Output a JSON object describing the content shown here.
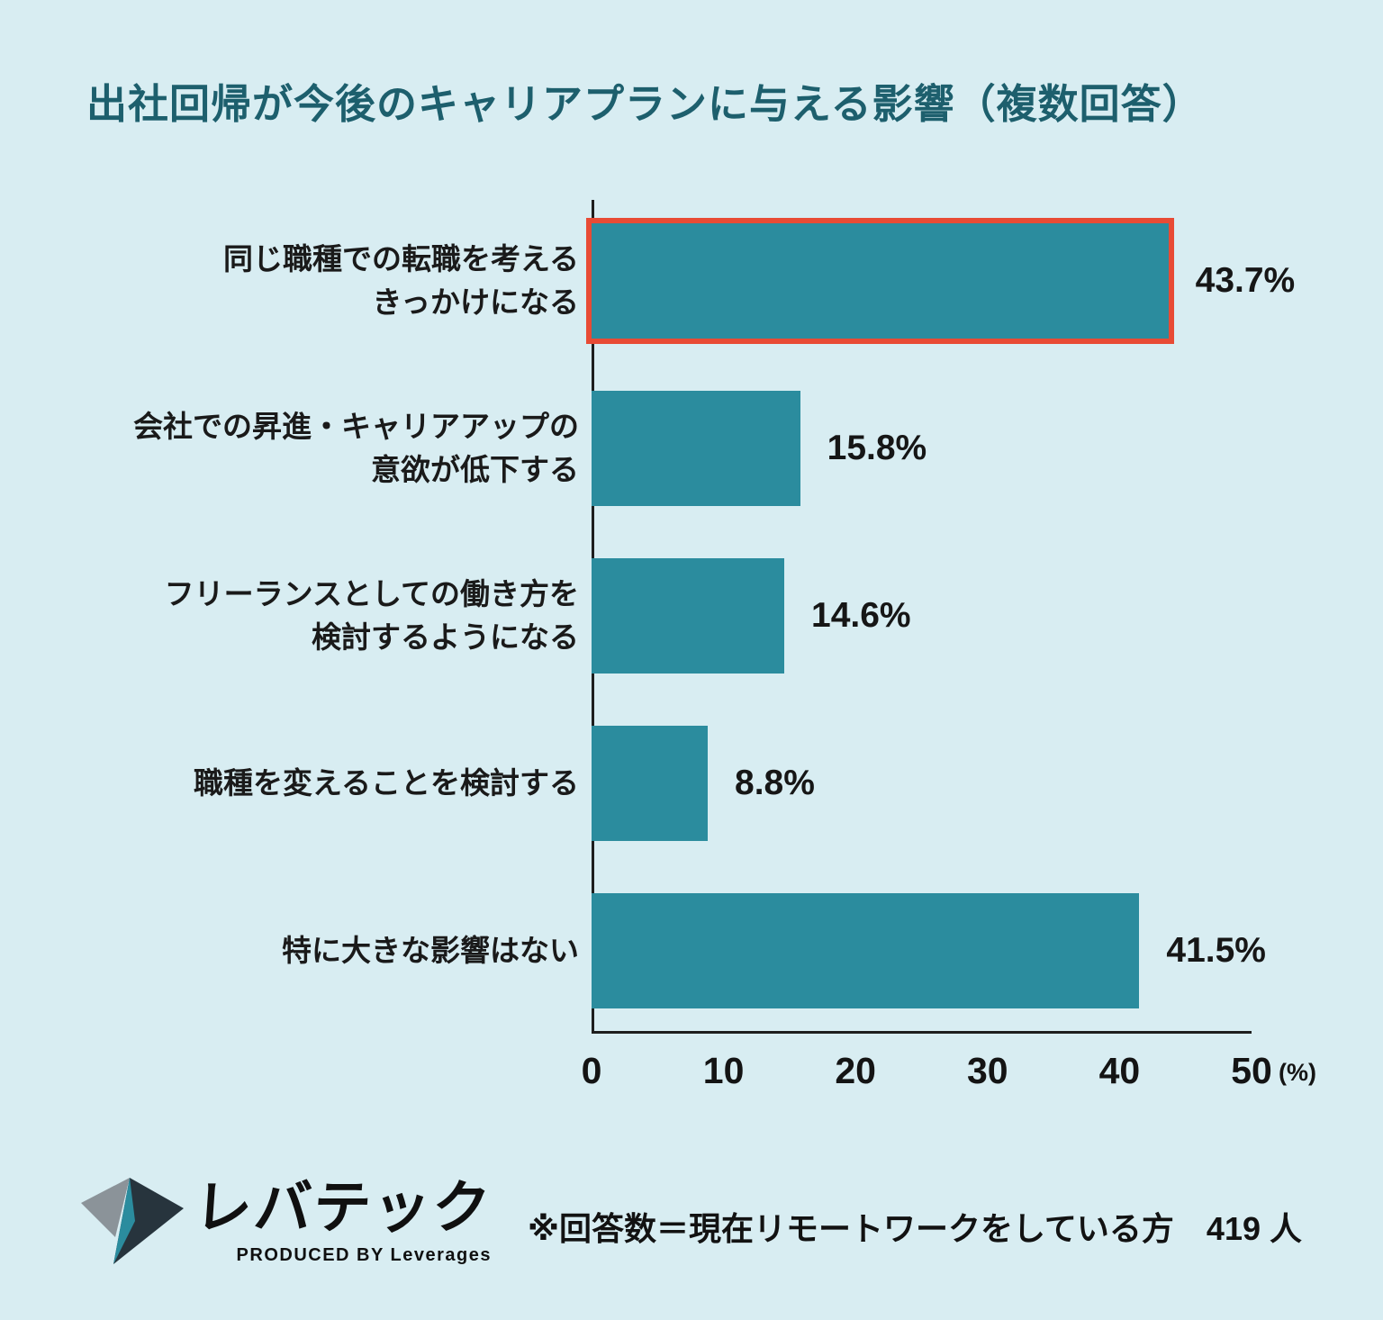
{
  "page": {
    "background": "#d8edf2",
    "title": "出社回帰が今後のキャリアプランに与える影響（複数回答）",
    "title_color": "#1d5f6d"
  },
  "chart_data": {
    "type": "bar",
    "orientation": "horizontal",
    "title": "出社回帰が今後のキャリアプランに与える影響（複数回答）",
    "categories": [
      "同じ職種での転職を考える\nきっかけになる",
      "会社での昇進・キャリアアップの\n意欲が低下する",
      "フリーランスとしての働き方を\n検討するようになる",
      "職種を変えることを検討する",
      "特に大きな影響はない"
    ],
    "values": [
      43.7,
      15.8,
      14.6,
      8.8,
      41.5
    ],
    "value_labels": [
      "43.7%",
      "15.8%",
      "14.6%",
      "8.8%",
      "41.5%"
    ],
    "highlighted_index": 0,
    "bar_color": "#2b8c9e",
    "highlight_color": "#e84b35",
    "xlim": [
      0,
      50
    ],
    "x_ticks": [
      0,
      10,
      20,
      30,
      40,
      50
    ],
    "x_unit": "(%)",
    "grid": false,
    "legend": null
  },
  "footer": {
    "logo_text": "レバテック",
    "logo_subtext": "PRODUCED BY Leverages",
    "note": "※回答数＝現在リモートワークをしている方　419 人"
  }
}
